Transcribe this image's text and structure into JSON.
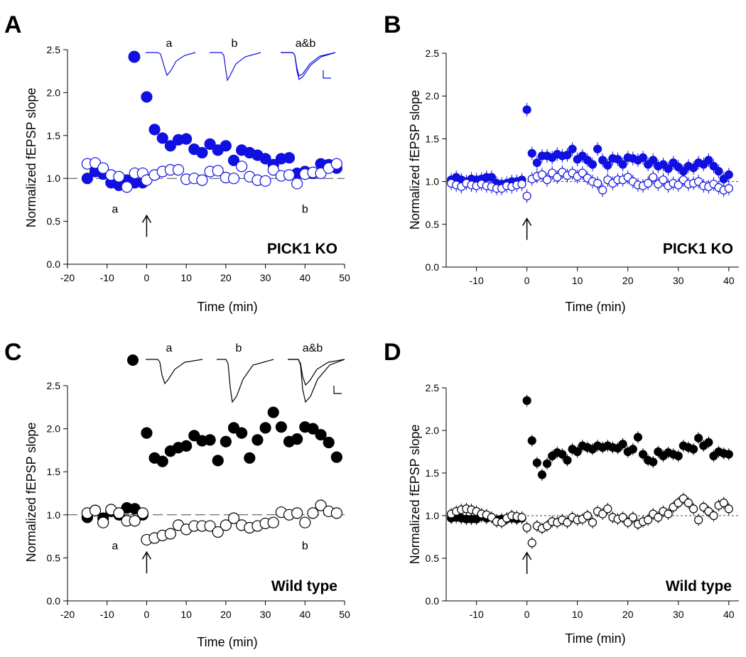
{
  "colors": {
    "ko_filled": "#1010e0",
    "ko_open_stroke": "#1010e0",
    "wt_filled": "#000000",
    "wt_open_stroke": "#000000"
  },
  "panels": [
    {
      "id": "A",
      "letter": "A",
      "tag": "PICK1 KO",
      "color": "#1010e0",
      "stim_time": 0,
      "chart_data": {
        "type": "scatter",
        "title": "",
        "xlabel": "Time (min)",
        "ylabel": "Normalized fEPSP slope",
        "xlim": [
          -20,
          50
        ],
        "ylim": [
          0,
          2.5
        ],
        "xticks": [
          -20,
          -10,
          0,
          10,
          20,
          30,
          40,
          50
        ],
        "xtick_labels": [
          "-20",
          "-10",
          "0",
          "10",
          "20",
          "30",
          "40",
          "50"
        ],
        "yticks": [
          0,
          0.5,
          1,
          1.5,
          2,
          2.5
        ],
        "ytick_labels": [
          "0.0",
          "0.5",
          "1.0",
          "1.5",
          "2.0",
          "2.5"
        ],
        "baseline": 1.0,
        "legend_marker": "filled",
        "series": [
          {
            "name": "filled",
            "style": "filled",
            "x": [
              -15,
              -13,
              -11,
              -9,
              -7,
              -5,
              -3,
              -1,
              0,
              2,
              4,
              6,
              8,
              10,
              12,
              14,
              16,
              18,
              20,
              22,
              24,
              26,
              28,
              30,
              32,
              34,
              36,
              38,
              40,
              42,
              44,
              46,
              48
            ],
            "y": [
              1.0,
              1.08,
              1.05,
              0.95,
              0.92,
              0.98,
              0.95,
              0.95,
              1.95,
              1.57,
              1.47,
              1.38,
              1.45,
              1.46,
              1.34,
              1.3,
              1.4,
              1.33,
              1.38,
              1.21,
              1.33,
              1.3,
              1.27,
              1.23,
              1.16,
              1.23,
              1.24,
              1.06,
              1.08,
              1.06,
              1.17,
              1.16,
              1.12
            ]
          },
          {
            "name": "open",
            "style": "open",
            "x": [
              -15,
              -13,
              -11,
              -9,
              -7,
              -5,
              -3,
              -1,
              0,
              2,
              4,
              6,
              8,
              10,
              12,
              14,
              16,
              18,
              20,
              22,
              24,
              26,
              28,
              30,
              32,
              34,
              36,
              38,
              40,
              42,
              44,
              46,
              48
            ],
            "y": [
              1.17,
              1.18,
              1.12,
              1.04,
              1.02,
              0.9,
              1.06,
              1.06,
              0.98,
              1.04,
              1.08,
              1.1,
              1.1,
              0.99,
              1.0,
              0.98,
              1.08,
              1.09,
              1.01,
              1.0,
              1.14,
              1.02,
              0.98,
              0.97,
              1.1,
              1.03,
              1.04,
              0.94,
              1.05,
              1.07,
              1.06,
              1.12,
              1.17
            ]
          }
        ],
        "annotations": [
          {
            "text": "a",
            "x": -8,
            "y": 0.6
          },
          {
            "text": "b",
            "x": 40,
            "y": 0.6
          }
        ]
      },
      "traces": {
        "labels": [
          "a",
          "b",
          "a&b"
        ]
      }
    },
    {
      "id": "B",
      "letter": "B",
      "tag": "PICK1 KO",
      "color": "#1010e0",
      "stim_time": 0,
      "chart_data": {
        "type": "scatter",
        "title": "",
        "xlabel": "Time (min)",
        "ylabel": "Normalized fEPSP slope",
        "xlim": [
          -16,
          42
        ],
        "ylim": [
          0,
          2.5
        ],
        "xticks": [
          -10,
          0,
          10,
          20,
          30,
          40
        ],
        "xtick_labels": [
          "-10",
          "0",
          "10",
          "20",
          "30",
          "40"
        ],
        "yticks": [
          0,
          0.5,
          1,
          1.5,
          2,
          2.5
        ],
        "ytick_labels": [
          "0.0",
          "0.5",
          "1.0",
          "1.5",
          "2.0",
          "2.5"
        ],
        "baseline": 1.0,
        "error_bar": 0.08,
        "series": [
          {
            "name": "filled",
            "style": "filled",
            "x": [
              -15,
              -14,
              -13,
              -12,
              -11,
              -10,
              -9,
              -8,
              -7,
              -6,
              -5,
              -4,
              -3,
              -2,
              -1,
              0,
              1,
              2,
              3,
              4,
              5,
              6,
              7,
              8,
              9,
              10,
              11,
              12,
              13,
              14,
              15,
              16,
              17,
              18,
              19,
              20,
              21,
              22,
              23,
              24,
              25,
              26,
              27,
              28,
              29,
              30,
              31,
              32,
              33,
              34,
              35,
              36,
              37,
              38,
              39,
              40
            ],
            "y": [
              1.02,
              1.05,
              1.02,
              1.0,
              1.03,
              1.02,
              1.03,
              1.05,
              1.05,
              0.98,
              0.97,
              0.98,
              1.0,
              1.0,
              1.02,
              1.84,
              1.33,
              1.22,
              1.3,
              1.3,
              1.28,
              1.32,
              1.3,
              1.31,
              1.38,
              1.26,
              1.3,
              1.25,
              1.2,
              1.38,
              1.25,
              1.19,
              1.27,
              1.26,
              1.2,
              1.28,
              1.27,
              1.25,
              1.28,
              1.2,
              1.25,
              1.18,
              1.2,
              1.15,
              1.22,
              1.17,
              1.12,
              1.18,
              1.16,
              1.22,
              1.2,
              1.25,
              1.18,
              1.12,
              1.03,
              1.08
            ]
          },
          {
            "name": "open",
            "style": "open",
            "x": [
              -15,
              -14,
              -13,
              -12,
              -11,
              -10,
              -9,
              -8,
              -7,
              -6,
              -5,
              -4,
              -3,
              -2,
              -1,
              0,
              1,
              2,
              3,
              4,
              5,
              6,
              7,
              8,
              9,
              10,
              11,
              12,
              13,
              14,
              15,
              16,
              17,
              18,
              19,
              20,
              21,
              22,
              23,
              24,
              25,
              26,
              27,
              28,
              29,
              30,
              31,
              32,
              33,
              34,
              35,
              36,
              37,
              38,
              39,
              40
            ],
            "y": [
              0.98,
              0.96,
              0.94,
              0.98,
              0.96,
              0.95,
              0.97,
              0.95,
              0.94,
              0.92,
              0.92,
              0.95,
              0.94,
              0.96,
              0.97,
              0.83,
              1.03,
              1.06,
              1.08,
              1.02,
              1.1,
              1.05,
              1.11,
              1.07,
              1.1,
              1.06,
              1.1,
              1.04,
              1.0,
              0.98,
              0.9,
              1.02,
              0.98,
              1.02,
              1.02,
              1.05,
              1.0,
              0.96,
              0.95,
              0.98,
              1.05,
              0.97,
              1.02,
              0.95,
              0.98,
              0.96,
              1.02,
              0.97,
              0.98,
              1.0,
              0.95,
              0.94,
              0.97,
              0.93,
              0.9,
              0.92
            ]
          }
        ]
      }
    },
    {
      "id": "C",
      "letter": "C",
      "tag": "Wild type",
      "color": "#000000",
      "stim_time": 0,
      "chart_data": {
        "type": "scatter",
        "title": "",
        "xlabel": "Time (min)",
        "ylabel": "Normalized fEPSP slope",
        "xlim": [
          -20,
          50
        ],
        "ylim": [
          0,
          2.5
        ],
        "xticks": [
          -20,
          -10,
          0,
          10,
          20,
          30,
          40,
          50
        ],
        "xtick_labels": [
          "-20",
          "-10",
          "0",
          "10",
          "20",
          "30",
          "40",
          "50"
        ],
        "yticks": [
          0,
          0.5,
          1,
          1.5,
          2,
          2.5
        ],
        "ytick_labels": [
          "0.0",
          "0.5",
          "1.0",
          "1.5",
          "2.0",
          "2.5"
        ],
        "baseline": 1.0,
        "legend_marker": "filled",
        "series": [
          {
            "name": "filled",
            "style": "filled",
            "x": [
              -15,
              -13,
              -11,
              -9,
              -7,
              -5,
              -3,
              -1,
              0,
              2,
              4,
              6,
              8,
              10,
              12,
              14,
              16,
              18,
              20,
              22,
              24,
              26,
              28,
              30,
              32,
              34,
              36,
              38,
              40,
              42,
              44,
              46,
              48
            ],
            "y": [
              0.97,
              1.05,
              0.96,
              1.04,
              1.0,
              1.08,
              1.07,
              1.0,
              1.95,
              1.66,
              1.62,
              1.74,
              1.78,
              1.8,
              1.92,
              1.86,
              1.87,
              1.63,
              1.85,
              2.01,
              1.95,
              1.66,
              1.87,
              2.01,
              2.19,
              2.02,
              1.85,
              1.88,
              2.02,
              2.0,
              1.93,
              1.84,
              1.67
            ]
          },
          {
            "name": "open",
            "style": "open",
            "x": [
              -15,
              -13,
              -11,
              -9,
              -7,
              -5,
              -3,
              -1,
              0,
              2,
              4,
              6,
              8,
              10,
              12,
              14,
              16,
              18,
              20,
              22,
              24,
              26,
              28,
              30,
              32,
              34,
              36,
              38,
              40,
              42,
              44,
              46,
              48
            ],
            "y": [
              1.02,
              1.05,
              0.91,
              1.06,
              1.02,
              0.93,
              0.93,
              1.02,
              0.71,
              0.73,
              0.76,
              0.78,
              0.88,
              0.83,
              0.87,
              0.87,
              0.87,
              0.8,
              0.88,
              0.96,
              0.88,
              0.85,
              0.87,
              0.9,
              0.91,
              1.03,
              1.0,
              1.02,
              0.91,
              1.02,
              1.11,
              1.04,
              1.02
            ]
          }
        ],
        "annotations": [
          {
            "text": "a",
            "x": -8,
            "y": 0.6
          },
          {
            "text": "b",
            "x": 40,
            "y": 0.6
          }
        ]
      },
      "traces": {
        "labels": [
          "a",
          "b",
          "a&b"
        ]
      }
    },
    {
      "id": "D",
      "letter": "D",
      "tag": "Wild type",
      "color": "#000000",
      "stim_time": 0,
      "chart_data": {
        "type": "scatter",
        "title": "",
        "xlabel": "Time (min)",
        "ylabel": "Normalized fEPSP slope",
        "xlim": [
          -16,
          42
        ],
        "ylim": [
          0,
          2.5
        ],
        "xticks": [
          -10,
          0,
          10,
          20,
          30,
          40
        ],
        "xtick_labels": [
          "-10",
          "0",
          "10",
          "20",
          "30",
          "40"
        ],
        "yticks": [
          0,
          0.5,
          1,
          1.5,
          2,
          2.5
        ],
        "ytick_labels": [
          "0.0",
          "0.5",
          "1.0",
          "1.5",
          "2.0",
          "2.5"
        ],
        "baseline": 1.0,
        "error_bar": 0.07,
        "series": [
          {
            "name": "filled",
            "style": "filled",
            "x": [
              -15,
              -14,
              -13,
              -12,
              -11,
              -10,
              -9,
              -8,
              -7,
              -6,
              -5,
              -4,
              -3,
              -2,
              -1,
              0,
              1,
              2,
              3,
              4,
              5,
              6,
              7,
              8,
              9,
              10,
              11,
              12,
              13,
              14,
              15,
              16,
              17,
              18,
              19,
              20,
              21,
              22,
              23,
              24,
              25,
              26,
              27,
              28,
              29,
              30,
              31,
              32,
              33,
              34,
              35,
              36,
              37,
              38,
              39,
              40
            ],
            "y": [
              0.97,
              0.98,
              0.97,
              0.96,
              0.96,
              0.96,
              0.99,
              0.97,
              0.98,
              0.95,
              0.96,
              0.96,
              0.97,
              0.96,
              0.97,
              2.35,
              1.88,
              1.62,
              1.48,
              1.61,
              1.7,
              1.74,
              1.72,
              1.65,
              1.78,
              1.75,
              1.82,
              1.8,
              1.78,
              1.82,
              1.8,
              1.82,
              1.8,
              1.79,
              1.84,
              1.75,
              1.78,
              1.92,
              1.72,
              1.65,
              1.63,
              1.75,
              1.7,
              1.74,
              1.72,
              1.7,
              1.82,
              1.8,
              1.78,
              1.91,
              1.82,
              1.86,
              1.7,
              1.75,
              1.73,
              1.72
            ]
          },
          {
            "name": "open",
            "style": "open",
            "x": [
              -15,
              -14,
              -13,
              -12,
              -11,
              -10,
              -9,
              -8,
              -7,
              -6,
              -5,
              -4,
              -3,
              -2,
              -1,
              0,
              1,
              2,
              3,
              4,
              5,
              6,
              7,
              8,
              9,
              10,
              11,
              12,
              13,
              14,
              15,
              16,
              17,
              18,
              19,
              20,
              21,
              22,
              23,
              24,
              25,
              26,
              27,
              28,
              29,
              30,
              31,
              32,
              33,
              34,
              35,
              36,
              37,
              38,
              39,
              40
            ],
            "y": [
              1.02,
              1.05,
              1.07,
              1.08,
              1.07,
              1.05,
              1.02,
              1.01,
              0.98,
              0.93,
              0.92,
              0.97,
              1.0,
              0.99,
              0.98,
              0.86,
              0.68,
              0.88,
              0.85,
              0.88,
              0.93,
              0.92,
              0.95,
              0.92,
              0.98,
              0.95,
              0.96,
              1.0,
              0.92,
              1.05,
              1.02,
              1.08,
              0.98,
              0.96,
              0.98,
              0.92,
              0.98,
              0.9,
              0.93,
              0.95,
              1.02,
              0.98,
              1.05,
              1.02,
              1.1,
              1.15,
              1.2,
              1.15,
              1.08,
              0.95,
              1.1,
              1.05,
              1.0,
              1.12,
              1.15,
              1.08
            ]
          }
        ]
      }
    }
  ]
}
